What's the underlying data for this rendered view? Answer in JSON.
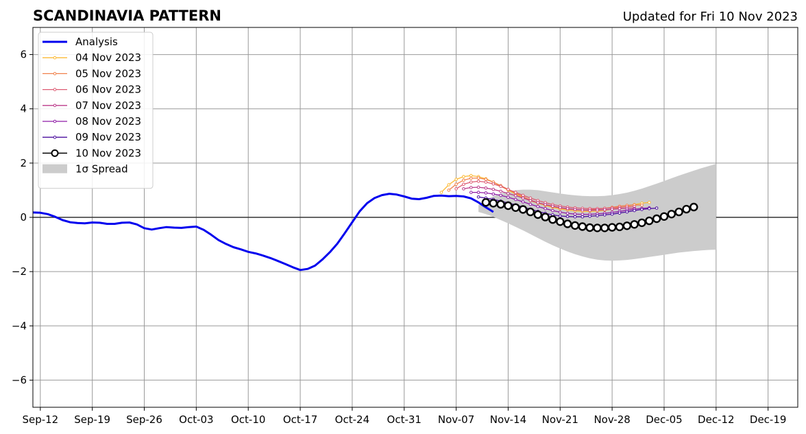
{
  "chart_data": {
    "type": "line",
    "title": "SCANDINAVIA PATTERN",
    "subtitle": "Updated for Fri 10 Nov 2023",
    "xlabel": "",
    "ylabel": "",
    "xlim": [
      "2023-09-11",
      "2023-12-23"
    ],
    "ylim": [
      -7,
      7
    ],
    "grid": true,
    "legend_position": "top-left",
    "x_ticks": [
      "2023-09-12",
      "2023-09-19",
      "2023-09-26",
      "2023-10-03",
      "2023-10-10",
      "2023-10-17",
      "2023-10-24",
      "2023-10-31",
      "2023-11-07",
      "2023-11-14",
      "2023-11-21",
      "2023-11-28",
      "2023-12-05",
      "2023-12-12",
      "2023-12-19"
    ],
    "x_tick_labels": [
      "Sep-12",
      "Sep-19",
      "Sep-26",
      "Oct-03",
      "Oct-10",
      "Oct-17",
      "Oct-24",
      "Oct-31",
      "Nov-07",
      "Nov-14",
      "Nov-21",
      "Nov-28",
      "Dec-05",
      "Dec-12",
      "Dec-19"
    ],
    "y_ticks": [
      -6,
      -4,
      -2,
      0,
      2,
      4,
      6
    ],
    "y_tick_labels": [
      "−6",
      "−4",
      "−2",
      "0",
      "2",
      "4",
      "6"
    ],
    "analysis": {
      "name": "Analysis",
      "color": "#0000ee",
      "start": "2023-09-11",
      "values": [
        0.18,
        0.17,
        0.12,
        0.02,
        -0.1,
        -0.18,
        -0.21,
        -0.22,
        -0.19,
        -0.2,
        -0.24,
        -0.24,
        -0.2,
        -0.19,
        -0.26,
        -0.4,
        -0.45,
        -0.4,
        -0.36,
        -0.38,
        -0.39,
        -0.36,
        -0.34,
        -0.46,
        -0.64,
        -0.84,
        -0.98,
        -1.1,
        -1.18,
        -1.27,
        -1.33,
        -1.41,
        -1.5,
        -1.61,
        -1.72,
        -1.84,
        -1.94,
        -1.9,
        -1.78,
        -1.55,
        -1.28,
        -0.97,
        -0.58,
        -0.18,
        0.22,
        0.52,
        0.71,
        0.82,
        0.87,
        0.84,
        0.77,
        0.69,
        0.67,
        0.72,
        0.79,
        0.8,
        0.78,
        0.79,
        0.77,
        0.7,
        0.55,
        0.37,
        0.2
      ]
    },
    "spread": {
      "name": "1σ Spread",
      "color": "#cccccc",
      "start": "2023-11-10",
      "upper": [
        0.45,
        0.65,
        0.78,
        0.88,
        0.95,
        1.0,
        1.02,
        1.02,
        1.0,
        0.96,
        0.92,
        0.88,
        0.84,
        0.81,
        0.79,
        0.78,
        0.78,
        0.79,
        0.82,
        0.86,
        0.91,
        0.98,
        1.06,
        1.15,
        1.24,
        1.34,
        1.44,
        1.54,
        1.63,
        1.72,
        1.81,
        1.89,
        1.97
      ],
      "lower": [
        0.2,
        0.12,
        0.02,
        -0.1,
        -0.22,
        -0.35,
        -0.48,
        -0.62,
        -0.76,
        -0.9,
        -1.03,
        -1.15,
        -1.26,
        -1.36,
        -1.44,
        -1.51,
        -1.56,
        -1.59,
        -1.6,
        -1.59,
        -1.57,
        -1.54,
        -1.5,
        -1.46,
        -1.42,
        -1.38,
        -1.34,
        -1.3,
        -1.27,
        -1.24,
        -1.22,
        -1.2,
        -1.19
      ]
    },
    "series": [
      {
        "name": "04 Nov 2023",
        "color": "#fcb933",
        "start": "2023-11-05",
        "values": [
          0.92,
          1.2,
          1.4,
          1.5,
          1.54,
          1.5,
          1.42,
          1.3,
          1.15,
          1.0,
          0.86,
          0.73,
          0.61,
          0.52,
          0.44,
          0.37,
          0.31,
          0.27,
          0.24,
          0.22,
          0.22,
          0.23,
          0.26,
          0.3,
          0.35,
          0.41,
          0.47,
          0.52,
          0.55
        ]
      },
      {
        "name": "05 Nov 2023",
        "color": "#f0804a",
        "start": "2023-11-06",
        "values": [
          1.0,
          1.22,
          1.37,
          1.44,
          1.45,
          1.4,
          1.3,
          1.17,
          1.03,
          0.89,
          0.76,
          0.64,
          0.54,
          0.46,
          0.4,
          0.35,
          0.31,
          0.28,
          0.27,
          0.28,
          0.3,
          0.33,
          0.37,
          0.41,
          0.44,
          0.46,
          0.45
        ]
      },
      {
        "name": "06 Nov 2023",
        "color": "#dd5a72",
        "start": "2023-11-07",
        "values": [
          1.05,
          1.22,
          1.3,
          1.33,
          1.3,
          1.23,
          1.14,
          1.03,
          0.92,
          0.81,
          0.71,
          0.62,
          0.54,
          0.47,
          0.42,
          0.38,
          0.35,
          0.33,
          0.32,
          0.32,
          0.33,
          0.35,
          0.37,
          0.39,
          0.4
        ]
      },
      {
        "name": "07 Nov 2023",
        "color": "#bb3a8a",
        "start": "2023-11-08",
        "values": [
          1.05,
          1.1,
          1.11,
          1.08,
          1.03,
          0.96,
          0.88,
          0.8,
          0.71,
          0.62,
          0.54,
          0.47,
          0.41,
          0.36,
          0.32,
          0.29,
          0.27,
          0.26,
          0.27,
          0.28,
          0.3,
          0.32,
          0.33,
          0.33
        ]
      },
      {
        "name": "08 Nov 2023",
        "color": "#8e1aa6",
        "start": "2023-11-09",
        "values": [
          0.92,
          0.92,
          0.9,
          0.86,
          0.81,
          0.74,
          0.66,
          0.57,
          0.48,
          0.4,
          0.32,
          0.25,
          0.19,
          0.15,
          0.12,
          0.11,
          0.11,
          0.13,
          0.15,
          0.18,
          0.22,
          0.26,
          0.3,
          0.33,
          0.35
        ]
      },
      {
        "name": "09 Nov 2023",
        "color": "#4a0c9e",
        "start": "2023-11-10",
        "values": [
          0.75,
          0.71,
          0.66,
          0.6,
          0.53,
          0.46,
          0.38,
          0.3,
          0.22,
          0.15,
          0.09,
          0.05,
          0.03,
          0.02,
          0.02,
          0.04,
          0.06,
          0.09,
          0.12,
          0.16,
          0.2,
          0.25,
          0.29,
          0.32,
          0.34
        ]
      },
      {
        "name": "10 Nov 2023",
        "color": "#000000",
        "start": "2023-11-11",
        "values": [
          0.55,
          0.52,
          0.48,
          0.43,
          0.36,
          0.29,
          0.2,
          0.1,
          0.01,
          -0.08,
          -0.16,
          -0.24,
          -0.3,
          -0.34,
          -0.38,
          -0.39,
          -0.39,
          -0.37,
          -0.35,
          -0.31,
          -0.26,
          -0.2,
          -0.13,
          -0.05,
          0.03,
          0.12,
          0.2,
          0.3,
          0.38
        ]
      }
    ]
  }
}
